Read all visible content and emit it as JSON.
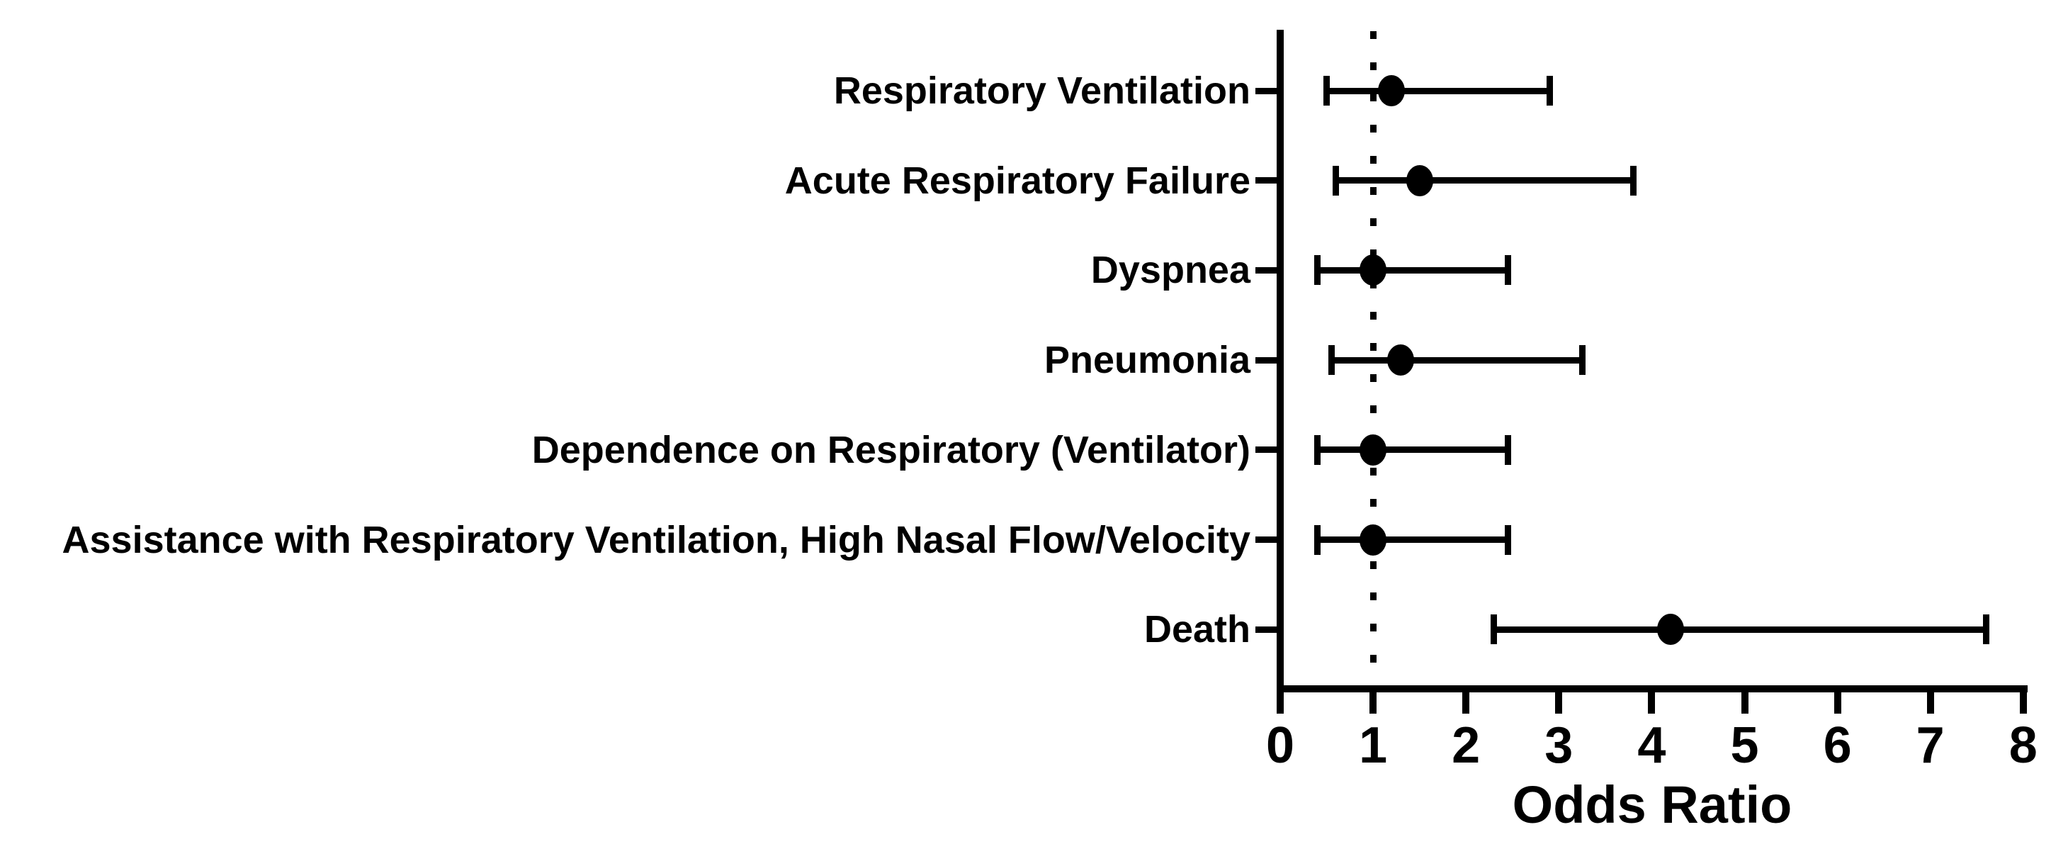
{
  "figure": {
    "background_color": "#ffffff",
    "foreground_color": "#000000"
  },
  "chart_data": {
    "type": "scatter",
    "variant": "forest-plot",
    "title": "",
    "xlabel": "Odds Ratio",
    "ylabel": "",
    "xlim": [
      0,
      8
    ],
    "xticks": [
      0,
      1,
      2,
      3,
      4,
      5,
      6,
      7,
      8
    ],
    "grid": false,
    "legend": false,
    "marker_color": "#000000",
    "reference_line": {
      "x": 1,
      "style": "dotted"
    },
    "rows": [
      {
        "label": "Respiratory Ventilation",
        "odds_ratio": 1.2,
        "ci_lower": 0.5,
        "ci_upper": 2.9
      },
      {
        "label": "Acute Respiratory Failure",
        "odds_ratio": 1.5,
        "ci_lower": 0.6,
        "ci_upper": 3.8
      },
      {
        "label": "Dyspnea",
        "odds_ratio": 1.0,
        "ci_lower": 0.4,
        "ci_upper": 2.45
      },
      {
        "label": "Pneumonia",
        "odds_ratio": 1.3,
        "ci_lower": 0.55,
        "ci_upper": 3.25
      },
      {
        "label": "Dependence on Respiratory (Ventilator)",
        "odds_ratio": 1.0,
        "ci_lower": 0.4,
        "ci_upper": 2.45
      },
      {
        "label": "Assistance with Respiratory Ventilation, High Nasal Flow/Velocity",
        "odds_ratio": 1.0,
        "ci_lower": 0.4,
        "ci_upper": 2.45
      },
      {
        "label": "Death",
        "odds_ratio": 4.2,
        "ci_lower": 2.3,
        "ci_upper": 7.6
      }
    ]
  }
}
